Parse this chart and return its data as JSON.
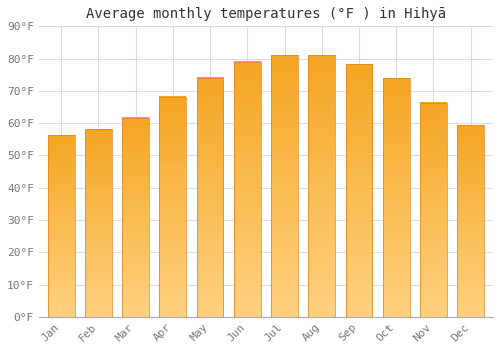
{
  "title": "Average monthly temperatures (°F ) in Hihyā",
  "months": [
    "Jan",
    "Feb",
    "Mar",
    "Apr",
    "May",
    "Jun",
    "Jul",
    "Aug",
    "Sep",
    "Oct",
    "Nov",
    "Dec"
  ],
  "values": [
    56.3,
    58.1,
    61.7,
    68.2,
    74.1,
    79.0,
    81.1,
    81.0,
    78.3,
    73.9,
    66.3,
    59.3
  ],
  "bar_color_top": "#FFA726",
  "bar_color_bottom": "#FFB74D",
  "bar_edge_color": "#E65100",
  "background_color": "#FFFFFF",
  "grid_color": "#DDDDDD",
  "ylim": [
    0,
    90
  ],
  "yticks": [
    0,
    10,
    20,
    30,
    40,
    50,
    60,
    70,
    80,
    90
  ],
  "ytick_labels": [
    "0°F",
    "10°F",
    "20°F",
    "30°F",
    "40°F",
    "50°F",
    "60°F",
    "70°F",
    "80°F",
    "90°F"
  ],
  "title_fontsize": 10,
  "tick_fontsize": 8,
  "font_family": "monospace"
}
